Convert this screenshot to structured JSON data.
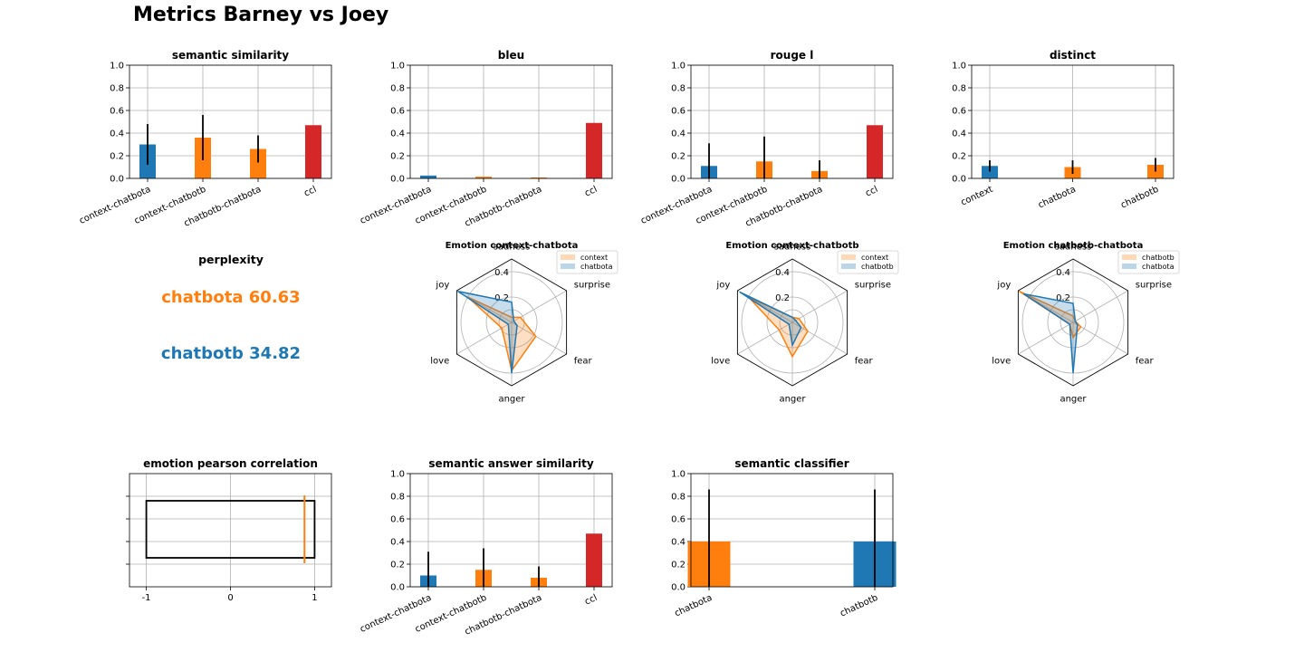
{
  "figure": {
    "title": "Metrics Barney vs Joey",
    "perplexity": {
      "title": "perplexity",
      "items": [
        {
          "label": "chatbota 60.63",
          "color": "#ff7f0e"
        },
        {
          "label": "chatbotb 34.82",
          "color": "#1f77b4"
        }
      ]
    }
  },
  "colors": {
    "blue": "#1f77b4",
    "orange": "#ff7f0e",
    "red": "#d62728"
  },
  "chart_data": [
    {
      "id": "semantic-similarity",
      "type": "bar",
      "title": "semantic similarity",
      "categories": [
        "context-chatbota",
        "context-chatbotb",
        "chatbotb-chatbota",
        "ccl"
      ],
      "values": [
        0.3,
        0.36,
        0.26,
        0.47
      ],
      "errors": [
        0.18,
        0.2,
        0.12,
        0
      ],
      "colors": [
        "#1f77b4",
        "#ff7f0e",
        "#ff7f0e",
        "#d62728"
      ],
      "ylim": [
        0,
        1
      ],
      "yticks": [
        "0.0",
        "0.2",
        "0.4",
        "0.6",
        "0.8",
        "1.0"
      ],
      "grid": true
    },
    {
      "id": "bleu",
      "type": "bar",
      "title": "bleu",
      "categories": [
        "context-chatbota",
        "context-chatbotb",
        "chatbotb-chatbota",
        "ccl"
      ],
      "values": [
        0.025,
        0.015,
        0.008,
        0.49
      ],
      "errors": [
        0,
        0,
        0,
        0
      ],
      "colors": [
        "#1f77b4",
        "#ff7f0e",
        "#ff7f0e",
        "#d62728"
      ],
      "ylim": [
        0,
        1
      ],
      "yticks": [
        "0.0",
        "0.2",
        "0.4",
        "0.6",
        "0.8",
        "1.0"
      ],
      "grid": true
    },
    {
      "id": "rouge-l",
      "type": "bar",
      "title": "rouge l",
      "categories": [
        "context-chatbota",
        "context-chatbotb",
        "chatbotb-chatbota",
        "ccl"
      ],
      "values": [
        0.11,
        0.15,
        0.065,
        0.47
      ],
      "errors": [
        0.2,
        0.22,
        0.095,
        0
      ],
      "colors": [
        "#1f77b4",
        "#ff7f0e",
        "#ff7f0e",
        "#d62728"
      ],
      "ylim": [
        0,
        1
      ],
      "yticks": [
        "0.0",
        "0.2",
        "0.4",
        "0.6",
        "0.8",
        "1.0"
      ],
      "grid": true
    },
    {
      "id": "distinct",
      "type": "bar",
      "title": "distinct",
      "categories": [
        "context",
        "chatbota",
        "chatbotb"
      ],
      "values": [
        0.11,
        0.1,
        0.12
      ],
      "errors": [
        0.05,
        0.06,
        0.06
      ],
      "colors": [
        "#1f77b4",
        "#ff7f0e",
        "#ff7f0e"
      ],
      "ylim": [
        0,
        1
      ],
      "yticks": [
        "0.0",
        "0.2",
        "0.4",
        "0.6",
        "0.8",
        "1.0"
      ],
      "grid": true
    },
    {
      "id": "emotion-context-chatbota",
      "type": "radar",
      "title": "Emotion context-chatbota",
      "axes": [
        "sadness",
        "surprise",
        "fear",
        "anger",
        "love",
        "joy"
      ],
      "rticks": [
        "0.2",
        "0.4"
      ],
      "rmax": 0.5,
      "series": [
        {
          "name": "context",
          "color": "#ff7f0e",
          "values": [
            0.04,
            0.08,
            0.22,
            0.38,
            0.09,
            0.4
          ]
        },
        {
          "name": "chatbota",
          "color": "#1f77b4",
          "values": [
            0.16,
            0.02,
            0.05,
            0.4,
            0.03,
            0.49
          ]
        }
      ]
    },
    {
      "id": "emotion-context-chatbotb",
      "type": "radar",
      "title": "Emotion context-chatbotb",
      "axes": [
        "sadness",
        "surprise",
        "fear",
        "anger",
        "love",
        "joy"
      ],
      "rticks": [
        "0.2",
        "0.4"
      ],
      "rmax": 0.5,
      "series": [
        {
          "name": "context",
          "color": "#ff7f0e",
          "values": [
            0.04,
            0.06,
            0.14,
            0.27,
            0.12,
            0.4
          ]
        },
        {
          "name": "chatbotb",
          "color": "#1f77b4",
          "values": [
            0.04,
            0.03,
            0.08,
            0.18,
            0.03,
            0.48
          ]
        }
      ]
    },
    {
      "id": "emotion-chatbotb-chatbota",
      "type": "radar",
      "title": "Emotion chatbotb-chatbota",
      "axes": [
        "sadness",
        "surprise",
        "fear",
        "anger",
        "love",
        "joy"
      ],
      "rticks": [
        "0.2",
        "0.4"
      ],
      "rmax": 0.5,
      "series": [
        {
          "name": "chatbotb",
          "color": "#ff7f0e",
          "values": [
            0.05,
            0.02,
            0.07,
            0.12,
            0.03,
            0.49
          ]
        },
        {
          "name": "chatbota",
          "color": "#1f77b4",
          "values": [
            0.15,
            0.02,
            0.04,
            0.4,
            0.03,
            0.45
          ]
        }
      ]
    },
    {
      "id": "emotion-pearson-correlation",
      "type": "box",
      "title": "emotion pearson correlation",
      "xlim": [
        -1.2,
        1.2
      ],
      "xticks": [
        "-1",
        "0",
        "1"
      ],
      "box": {
        "x0": -1,
        "x1": 1
      },
      "marker": {
        "x": 0.88,
        "color": "#ff7f0e"
      },
      "grid": true
    },
    {
      "id": "semantic-answer-similarity",
      "type": "bar",
      "title": "semantic answer similarity",
      "categories": [
        "context-chatbota",
        "context-chatbotb",
        "chatbotb-chatbota",
        "ccl"
      ],
      "values": [
        0.1,
        0.15,
        0.08,
        0.47
      ],
      "errors": [
        0.21,
        0.19,
        0.1,
        0
      ],
      "colors": [
        "#1f77b4",
        "#ff7f0e",
        "#ff7f0e",
        "#d62728"
      ],
      "ylim": [
        0,
        1
      ],
      "yticks": [
        "0.0",
        "0.2",
        "0.4",
        "0.6",
        "0.8",
        "1.0"
      ],
      "grid": true
    },
    {
      "id": "semantic-classifier",
      "type": "bar",
      "title": "semantic classifier",
      "categories": [
        "chatbota",
        "chatbotb"
      ],
      "values": [
        0.4,
        0.4
      ],
      "errors": [
        0.46,
        0.46
      ],
      "colors": [
        "#ff7f0e",
        "#1f77b4"
      ],
      "ylim": [
        0,
        1
      ],
      "yticks": [
        "0.0",
        "0.2",
        "0.4",
        "0.6",
        "0.8",
        "1.0"
      ],
      "grid": true
    }
  ]
}
